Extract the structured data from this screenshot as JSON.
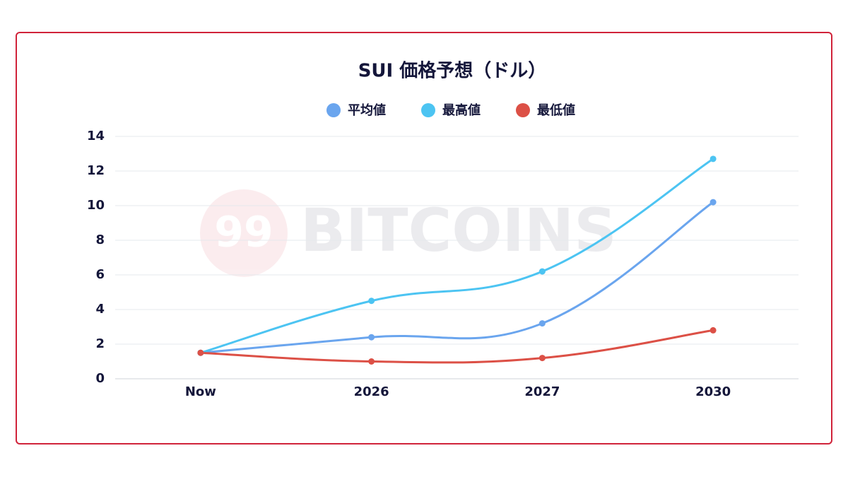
{
  "chart_data": {
    "type": "line",
    "title": "SUI 価格予想（ドル）",
    "watermark": {
      "logo": "99",
      "text": "BITCOINS"
    },
    "categories": [
      "Now",
      "2026",
      "2027",
      "2030"
    ],
    "series": [
      {
        "name": "平均値",
        "color": "#6aa5ee",
        "values": [
          1.5,
          2.4,
          3.2,
          10.2
        ]
      },
      {
        "name": "最高値",
        "color": "#4cc4f2",
        "values": [
          1.5,
          4.5,
          6.2,
          12.7
        ]
      },
      {
        "name": "最低値",
        "color": "#dc5046",
        "values": [
          1.5,
          1.0,
          1.2,
          2.8
        ]
      }
    ],
    "ylim": [
      0,
      14
    ],
    "yticks": [
      0,
      2,
      4,
      6,
      8,
      10,
      12,
      14
    ],
    "grid": true
  }
}
